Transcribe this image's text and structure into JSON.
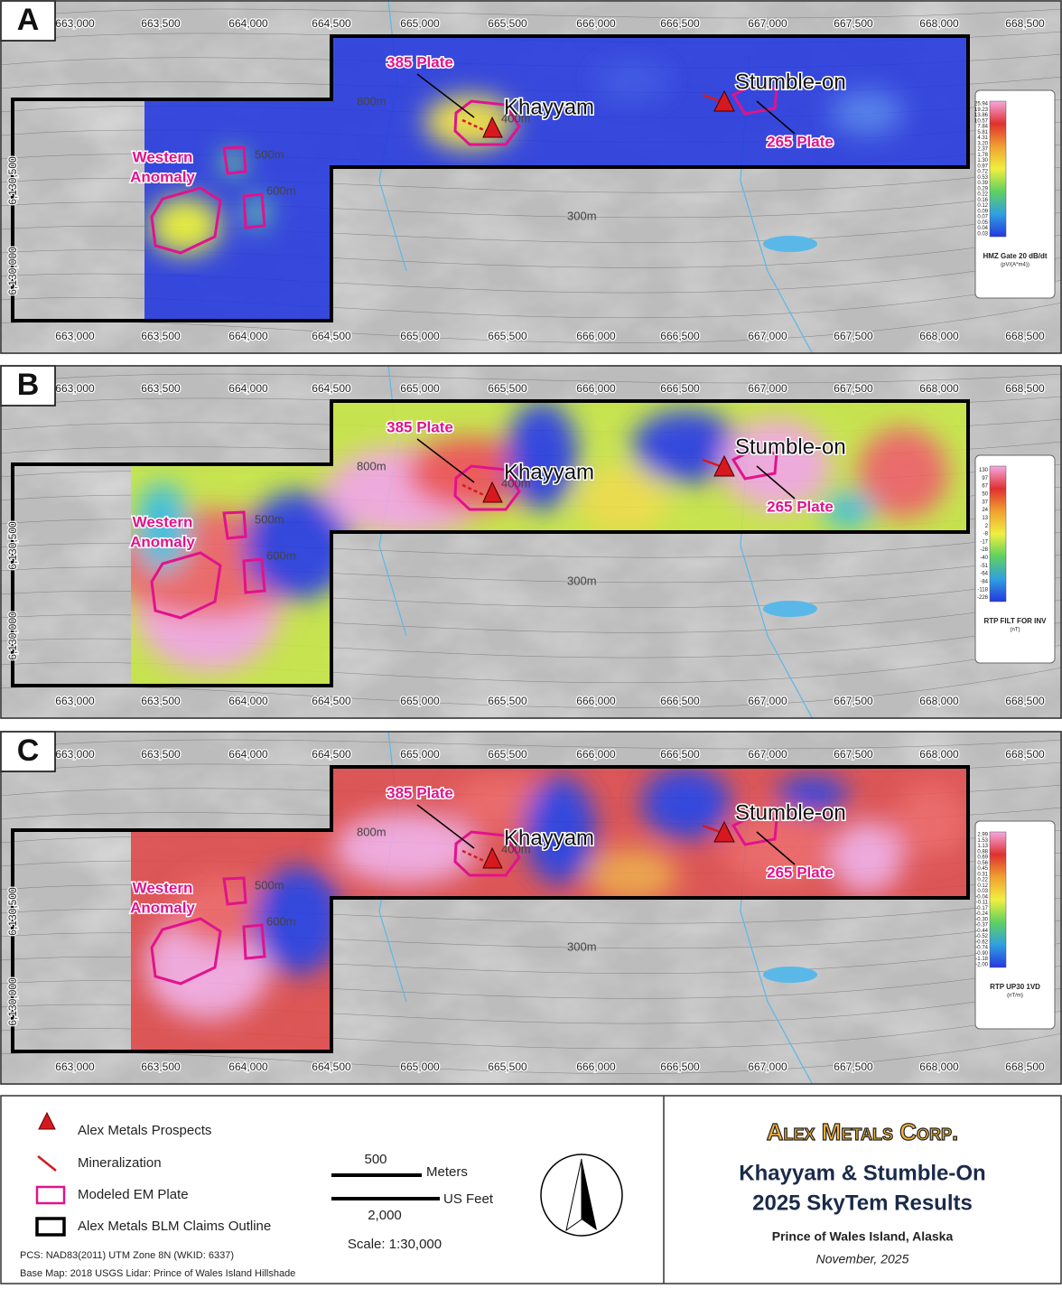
{
  "map": {
    "x_ticks": [
      "663,000",
      "663,500",
      "664,000",
      "664,500",
      "665,000",
      "665,500",
      "666,000",
      "666,500",
      "667,000",
      "667,500",
      "668,000",
      "668,500"
    ],
    "y_ticks": [
      "6,130,500",
      "6,130,000"
    ],
    "contour_labels": [
      "800m",
      "500m",
      "600m",
      "400m",
      "300m"
    ],
    "panels": [
      {
        "letter": "A",
        "plate_385": "385 Plate",
        "khayyam": "Khayyam",
        "stumble_on": "Stumble-on",
        "plate_265": "265 Plate",
        "western_anomaly": [
          "Western",
          "Anomaly"
        ],
        "colorbar": {
          "values": [
            "25.94",
            "19.23",
            "13.86",
            "10.57",
            "7.84",
            "5.81",
            "4.31",
            "3.20",
            "2.37",
            "1.78",
            "1.30",
            "0.97",
            "0.72",
            "0.53",
            "0.39",
            "0.29",
            "0.22",
            "0.16",
            "0.12",
            "0.09",
            "0.07",
            "0.05",
            "0.04",
            "0.03"
          ],
          "title": "HMZ Gate 20 dB/dt",
          "unit": "(pV/(A*m4))"
        }
      },
      {
        "letter": "B",
        "plate_385": "385 Plate",
        "khayyam": "Khayyam",
        "stumble_on": "Stumble-on",
        "plate_265": "265 Plate",
        "western_anomaly": [
          "Western",
          "Anomaly"
        ],
        "colorbar": {
          "values": [
            "130",
            "97",
            "67",
            "50",
            "37",
            "24",
            "13",
            "2",
            "-8",
            "-17",
            "-28",
            "-40",
            "-51",
            "-64",
            "-84",
            "-118",
            "-226"
          ],
          "title": "RTP FILT FOR INV",
          "unit": "(nT)"
        }
      },
      {
        "letter": "C",
        "plate_385": "385 Plate",
        "khayyam": "Khayyam",
        "stumble_on": "Stumble-on",
        "plate_265": "265 Plate",
        "western_anomaly": [
          "Western",
          "Anomaly"
        ],
        "colorbar": {
          "values": [
            "2.99",
            "1.53",
            "1.13",
            "0.88",
            "0.69",
            "0.56",
            "0.45",
            "0.31",
            "0.22",
            "0.12",
            "0.03",
            "-0.04",
            "-0.11",
            "-0.17",
            "-0.24",
            "-0.30",
            "-0.37",
            "-0.44",
            "-0.52",
            "-0.62",
            "-0.74",
            "-0.90",
            "-1.18",
            "-2.00"
          ],
          "title": "RTP UP30 1VD",
          "unit": "(nT/m)"
        }
      }
    ]
  },
  "legend": {
    "items": [
      "Alex Metals Prospects",
      "Mineralization",
      "Modeled EM Plate",
      "Alex Metals BLM Claims Outline"
    ],
    "pcs": "PCS: NAD83(2011) UTM Zone 8N (WKID: 6337)",
    "base_map": "Base Map: 2018 USGS Lidar: Prince of Wales Island Hillshade",
    "scale_meters_value": "500",
    "scale_meters_unit": "Meters",
    "scale_feet_value": "2,000",
    "scale_feet_unit": "US Feet",
    "scale": "Scale: 1:30,000"
  },
  "title_block": {
    "company": "Alex Metals Corp.",
    "title": [
      "Khayyam & Stumble-On",
      "2025 SkyTem Results"
    ],
    "location": "Prince of Wales Island, Alaska",
    "date": "November, 2025"
  }
}
